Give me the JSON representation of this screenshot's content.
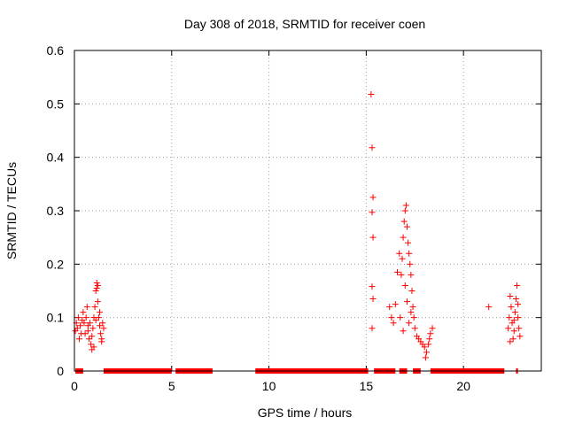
{
  "chart_data": {
    "type": "scatter",
    "title": "Day 308 of 2018, SRMTID for receiver coen",
    "xlabel": "GPS time / hours",
    "ylabel": "SRMTID / TECUs",
    "xlim": [
      0,
      24
    ],
    "ylim": [
      0,
      0.6
    ],
    "x_ticks": [
      0,
      5,
      10,
      15,
      20
    ],
    "y_ticks": [
      0,
      0.1,
      0.2,
      0.3,
      0.4,
      0.5,
      0.6
    ],
    "y_tick_labels": [
      "0",
      "0.1",
      "0.2",
      "0.3",
      "0.4",
      "0.5",
      "0.6"
    ],
    "grid": true,
    "marker": "+",
    "series": [
      {
        "name": "SRMTID",
        "color": "#ff0000",
        "points": [
          [
            0.05,
            0.075
          ],
          [
            0.1,
            0.09
          ],
          [
            0.15,
            0.08
          ],
          [
            0.2,
            0.1
          ],
          [
            0.25,
            0.06
          ],
          [
            0.3,
            0.085
          ],
          [
            0.35,
            0.07
          ],
          [
            0.4,
            0.095
          ],
          [
            0.45,
            0.11
          ],
          [
            0.5,
            0.09
          ],
          [
            0.55,
            0.07
          ],
          [
            0.6,
            0.1
          ],
          [
            0.65,
            0.12
          ],
          [
            0.7,
            0.085
          ],
          [
            0.75,
            0.06
          ],
          [
            0.8,
            0.09
          ],
          [
            0.85,
            0.05
          ],
          [
            0.9,
            0.04
          ],
          [
            0.95,
            0.08
          ],
          [
            1.0,
            0.1
          ],
          [
            1.05,
            0.12
          ],
          [
            1.1,
            0.15
          ],
          [
            1.15,
            0.165
          ],
          [
            1.15,
            0.155
          ],
          [
            1.2,
            0.16
          ],
          [
            1.2,
            0.13
          ],
          [
            1.25,
            0.1
          ],
          [
            1.3,
            0.085
          ],
          [
            1.35,
            0.07
          ],
          [
            1.4,
            0.06
          ],
          [
            1.45,
            0.09
          ],
          [
            1.5,
            0.08
          ],
          [
            0.7,
            0.075
          ],
          [
            0.9,
            0.065
          ],
          [
            1.0,
            0.045
          ],
          [
            1.1,
            0.095
          ],
          [
            1.3,
            0.11
          ],
          [
            1.4,
            0.055
          ],
          [
            15.25,
            0.518
          ],
          [
            15.3,
            0.418
          ],
          [
            15.35,
            0.325
          ],
          [
            15.3,
            0.297
          ],
          [
            15.35,
            0.25
          ],
          [
            15.3,
            0.158
          ],
          [
            15.35,
            0.135
          ],
          [
            15.3,
            0.08
          ],
          [
            16.2,
            0.12
          ],
          [
            16.3,
            0.1
          ],
          [
            16.4,
            0.09
          ],
          [
            16.5,
            0.125
          ],
          [
            16.6,
            0.185
          ],
          [
            16.7,
            0.22
          ],
          [
            16.8,
            0.18
          ],
          [
            16.9,
            0.25
          ],
          [
            16.95,
            0.28
          ],
          [
            17.0,
            0.3
          ],
          [
            17.05,
            0.31
          ],
          [
            17.1,
            0.27
          ],
          [
            17.15,
            0.24
          ],
          [
            17.2,
            0.22
          ],
          [
            17.25,
            0.2
          ],
          [
            17.3,
            0.18
          ],
          [
            17.35,
            0.15
          ],
          [
            17.4,
            0.12
          ],
          [
            17.45,
            0.1
          ],
          [
            17.5,
            0.08
          ],
          [
            17.6,
            0.065
          ],
          [
            17.7,
            0.06
          ],
          [
            17.8,
            0.055
          ],
          [
            17.9,
            0.05
          ],
          [
            18.0,
            0.045
          ],
          [
            18.1,
            0.035
          ],
          [
            18.2,
            0.05
          ],
          [
            18.3,
            0.07
          ],
          [
            18.4,
            0.08
          ],
          [
            16.85,
            0.21
          ],
          [
            17.0,
            0.16
          ],
          [
            17.1,
            0.13
          ],
          [
            17.3,
            0.11
          ],
          [
            16.75,
            0.1
          ],
          [
            16.9,
            0.075
          ],
          [
            17.2,
            0.09
          ],
          [
            18.05,
            0.025
          ],
          [
            18.25,
            0.06
          ],
          [
            21.3,
            0.12
          ],
          [
            22.3,
            0.08
          ],
          [
            22.35,
            0.1
          ],
          [
            22.4,
            0.14
          ],
          [
            22.45,
            0.12
          ],
          [
            22.5,
            0.09
          ],
          [
            22.55,
            0.06
          ],
          [
            22.6,
            0.075
          ],
          [
            22.65,
            0.11
          ],
          [
            22.7,
            0.135
          ],
          [
            22.75,
            0.16
          ],
          [
            22.8,
            0.1
          ],
          [
            22.85,
            0.08
          ],
          [
            22.9,
            0.065
          ],
          [
            22.4,
            0.055
          ],
          [
            22.6,
            0.095
          ],
          [
            22.8,
            0.125
          ]
        ],
        "zero_segments": [
          [
            0.05,
            0.45
          ],
          [
            1.5,
            5.0
          ],
          [
            5.2,
            7.1
          ],
          [
            9.3,
            15.1
          ],
          [
            15.4,
            16.5
          ],
          [
            16.7,
            17.1
          ],
          [
            17.4,
            17.8
          ],
          [
            18.3,
            22.1
          ],
          [
            22.7,
            22.8
          ]
        ]
      }
    ]
  }
}
